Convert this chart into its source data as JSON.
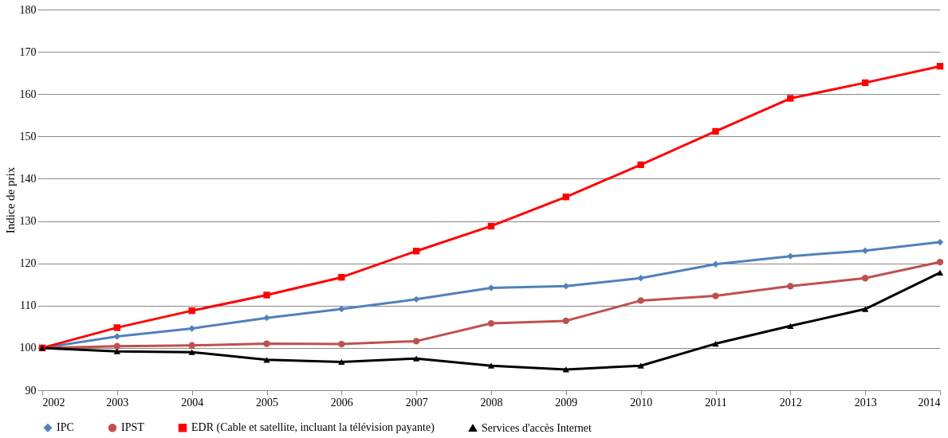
{
  "chart_data": {
    "type": "line",
    "ylabel": "Indice de prix",
    "x": [
      2002,
      2003,
      2004,
      2005,
      2006,
      2007,
      2008,
      2009,
      2010,
      2011,
      2012,
      2013,
      2014
    ],
    "xlim": [
      2002,
      2014
    ],
    "xticks": [
      2002,
      2003,
      2004,
      2005,
      2006,
      2007,
      2008,
      2009,
      2010,
      2011,
      2012,
      2013,
      2014
    ],
    "ylim": [
      90,
      180
    ],
    "yticks": [
      90,
      100,
      110,
      120,
      130,
      140,
      150,
      160,
      170,
      180
    ],
    "grid": "y",
    "legend": "bottom",
    "series": [
      {
        "name": "IPC",
        "color": "#4f81bd",
        "marker": "diamond",
        "values": [
          100,
          102.7,
          104.6,
          107.1,
          109.2,
          111.5,
          114.2,
          114.6,
          116.5,
          119.8,
          121.7,
          123,
          125
        ]
      },
      {
        "name": "IPST",
        "color": "#c0504d",
        "marker": "circle",
        "values": [
          100,
          100.4,
          100.6,
          101,
          100.9,
          101.6,
          105.8,
          106.4,
          111.2,
          112.3,
          114.6,
          116.5,
          120.3
        ]
      },
      {
        "name": "EDR (Cable et satellite, incluant la télévision payante)",
        "color": "#ff0000",
        "marker": "square",
        "values": [
          100,
          104.8,
          108.8,
          112.5,
          116.7,
          122.9,
          128.8,
          135.7,
          143.3,
          151.2,
          159,
          162.7,
          166.6
        ]
      },
      {
        "name": "Services d'accès Internet",
        "color": "#000000",
        "marker": "triangle",
        "values": [
          100,
          99.2,
          99,
          97.2,
          96.7,
          97.5,
          95.8,
          94.9,
          95.8,
          101,
          105.2,
          109.2,
          117.8
        ]
      }
    ]
  }
}
